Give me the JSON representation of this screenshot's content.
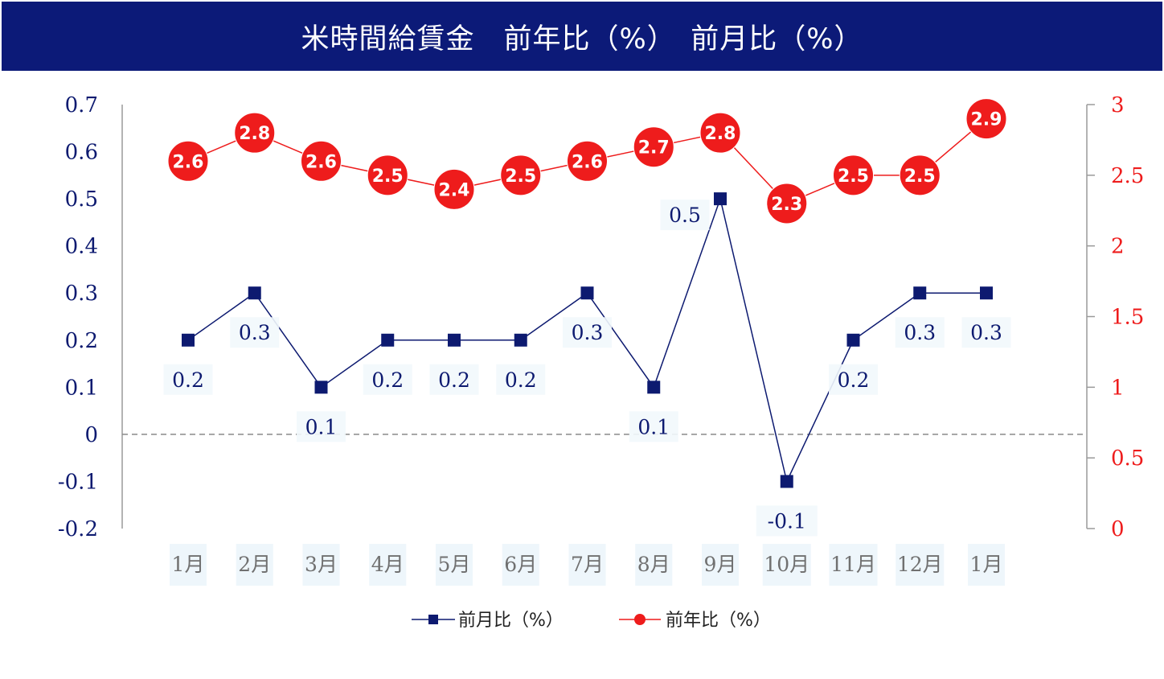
{
  "chart_data": {
    "type": "line",
    "title": "米時間給賃金　前年比（%）　前月比（%）",
    "categories": [
      "1月",
      "2月",
      "3月",
      "4月",
      "5月",
      "6月",
      "7月",
      "8月",
      "9月",
      "10月",
      "11月",
      "12月",
      "1月"
    ],
    "series": [
      {
        "name": "前月比（%）",
        "axis": "left",
        "color": "#0d1a70",
        "marker": "square",
        "values": [
          0.2,
          0.3,
          0.1,
          0.2,
          0.2,
          0.2,
          0.3,
          0.1,
          0.5,
          -0.1,
          0.2,
          0.3,
          0.3
        ]
      },
      {
        "name": "前年比（%）",
        "axis": "right",
        "color": "#ee1c1c",
        "marker": "circle",
        "values": [
          2.6,
          2.8,
          2.6,
          2.5,
          2.4,
          2.5,
          2.6,
          2.7,
          2.8,
          2.3,
          2.5,
          2.5,
          2.9
        ]
      }
    ],
    "y_left": {
      "lim": [
        -0.2,
        0.7
      ],
      "ticks": [
        "0.7",
        "0.6",
        "0.5",
        "0.4",
        "0.3",
        "0.2",
        "0.1",
        "0",
        "-0.1",
        "-0.2"
      ]
    },
    "y_right": {
      "lim": [
        0,
        3
      ],
      "ticks": [
        "3",
        "2.5",
        "2",
        "1.5",
        "1",
        "0.5",
        "0"
      ]
    },
    "zero_line": "dashed",
    "legend_position": "bottom-center"
  }
}
